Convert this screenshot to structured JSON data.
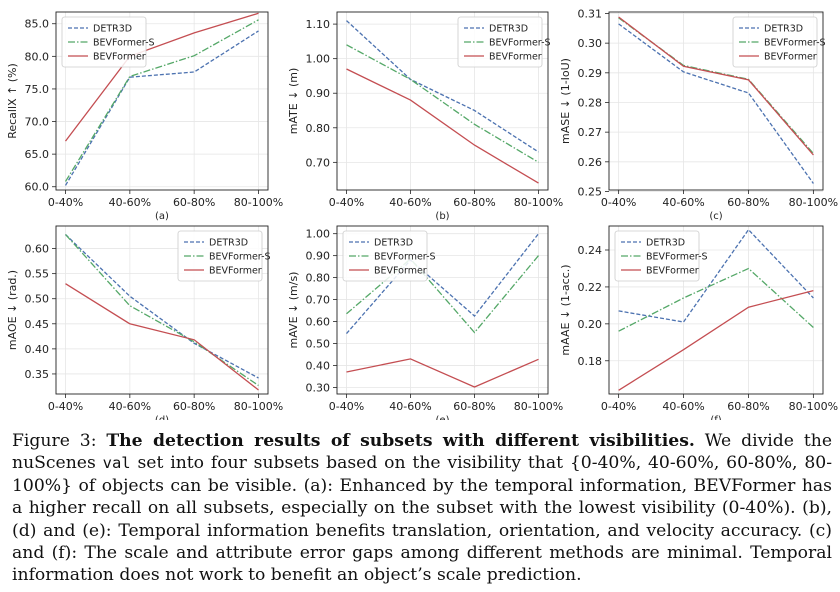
{
  "colors": {
    "DETR3D": "#4c72b0",
    "BEVFormer-S": "#55a868",
    "BEVFormer": "#c44e52"
  },
  "chart_data": [
    {
      "type": "line",
      "panel": "(a)",
      "ylabel": "RecallX ↑ (%)",
      "categories": [
        "0-40%",
        "40-60%",
        "60-80%",
        "80-100%"
      ],
      "ylim": [
        59.5,
        86.8
      ],
      "yticks": [
        60.0,
        65.0,
        70.0,
        75.0,
        80.0,
        85.0
      ],
      "ytick_labels": [
        "60.0",
        "65.0",
        "70.0",
        "75.0",
        "80.0",
        "85.0"
      ],
      "legend_loc": "top-left",
      "series": [
        {
          "name": "DETR3D",
          "values": [
            60.2,
            76.8,
            77.6,
            83.9
          ]
        },
        {
          "name": "BEVFormer-S",
          "values": [
            60.8,
            76.9,
            80.1,
            85.6
          ]
        },
        {
          "name": "BEVFormer",
          "values": [
            67.0,
            80.0,
            83.6,
            86.6
          ]
        }
      ]
    },
    {
      "type": "line",
      "panel": "(b)",
      "ylabel": "mATE ↓ (m)",
      "categories": [
        "0-40%",
        "40-60%",
        "60-80%",
        "80-100%"
      ],
      "ylim": [
        0.62,
        1.135
      ],
      "yticks": [
        0.7,
        0.8,
        0.9,
        1.0,
        1.1
      ],
      "ytick_labels": [
        "0.70",
        "0.80",
        "0.90",
        "1.00",
        "1.10"
      ],
      "legend_loc": "top-right",
      "series": [
        {
          "name": "DETR3D",
          "values": [
            1.11,
            0.94,
            0.85,
            0.73
          ]
        },
        {
          "name": "BEVFormer-S",
          "values": [
            1.04,
            0.94,
            0.81,
            0.7
          ]
        },
        {
          "name": "BEVFormer",
          "values": [
            0.97,
            0.88,
            0.75,
            0.64
          ]
        }
      ]
    },
    {
      "type": "line",
      "panel": "(c)",
      "ylabel": "mASE ↓ (1-IoU)",
      "categories": [
        "0-40%",
        "40-60%",
        "60-80%",
        "80-100%"
      ],
      "ylim": [
        0.2505,
        0.3105
      ],
      "yticks": [
        0.25,
        0.26,
        0.27,
        0.28,
        0.29,
        0.3,
        0.31
      ],
      "ytick_labels": [
        "0.25",
        "0.26",
        "0.27",
        "0.28",
        "0.29",
        "0.30",
        "0.31"
      ],
      "legend_loc": "top-right",
      "series": [
        {
          "name": "DETR3D",
          "values": [
            0.3065,
            0.2903,
            0.2832,
            0.2527
          ]
        },
        {
          "name": "BEVFormer-S",
          "values": [
            0.3085,
            0.2925,
            0.2878,
            0.2628
          ]
        },
        {
          "name": "BEVFormer",
          "values": [
            0.3088,
            0.2922,
            0.2876,
            0.2623
          ]
        }
      ]
    },
    {
      "type": "line",
      "panel": "(d)",
      "ylabel": "mAOE ↓ (rad.)",
      "categories": [
        "0-40%",
        "40-60%",
        "60-80%",
        "80-100%"
      ],
      "ylim": [
        0.31,
        0.645
      ],
      "yticks": [
        0.35,
        0.4,
        0.45,
        0.5,
        0.55,
        0.6
      ],
      "ytick_labels": [
        "0.35",
        "0.40",
        "0.45",
        "0.50",
        "0.55",
        "0.60"
      ],
      "legend_loc": "top-right",
      "series": [
        {
          "name": "DETR3D",
          "values": [
            0.628,
            0.505,
            0.411,
            0.342
          ]
        },
        {
          "name": "BEVFormer-S",
          "values": [
            0.628,
            0.486,
            0.414,
            0.327
          ]
        },
        {
          "name": "BEVFormer",
          "values": [
            0.53,
            0.45,
            0.418,
            0.318
          ]
        }
      ]
    },
    {
      "type": "line",
      "panel": "(e)",
      "ylabel": "mAVE ↓ (m/s)",
      "categories": [
        "0-40%",
        "40-60%",
        "60-80%",
        "80-100%"
      ],
      "ylim": [
        0.27,
        1.035
      ],
      "yticks": [
        0.3,
        0.4,
        0.5,
        0.6,
        0.7,
        0.8,
        0.9,
        1.0
      ],
      "ytick_labels": [
        "0.30",
        "0.40",
        "0.50",
        "0.60",
        "0.70",
        "0.80",
        "0.90",
        "1.00"
      ],
      "legend_loc": "top-left",
      "series": [
        {
          "name": "DETR3D",
          "values": [
            0.545,
            0.88,
            0.625,
            1.0
          ]
        },
        {
          "name": "BEVFormer-S",
          "values": [
            0.635,
            0.885,
            0.55,
            0.9
          ]
        },
        {
          "name": "BEVFormer",
          "values": [
            0.37,
            0.43,
            0.302,
            0.428
          ]
        }
      ]
    },
    {
      "type": "line",
      "panel": "(f)",
      "ylabel": "mAAE ↓ (1-acc.)",
      "categories": [
        "0-40%",
        "40-60%",
        "60-80%",
        "80-100%"
      ],
      "ylim": [
        0.162,
        0.253
      ],
      "yticks": [
        0.18,
        0.2,
        0.22,
        0.24
      ],
      "ytick_labels": [
        "0.18",
        "0.20",
        "0.22",
        "0.24"
      ],
      "legend_loc": "top-left",
      "series": [
        {
          "name": "DETR3D",
          "values": [
            0.207,
            0.201,
            0.251,
            0.214
          ]
        },
        {
          "name": "BEVFormer-S",
          "values": [
            0.196,
            0.214,
            0.23,
            0.198
          ]
        },
        {
          "name": "BEVFormer",
          "values": [
            0.164,
            0.186,
            0.209,
            0.218
          ]
        }
      ]
    }
  ],
  "caption": {
    "label": "Figure 3:",
    "title": "The detection results of subsets with different visibilities.",
    "text_1": "We divide the nuScenes",
    "code": "val",
    "text_2": "set into four subsets based on the visibility that {0-40%, 40-60%, 60-80%, 80-100%} of objects can be visible. (a): Enhanced by the temporal information, BEVFormer has a higher recall on all subsets, especially on the subset with the lowest visibility (0-40%). (b), (d) and (e): Temporal information benefits translation, orientation, and velocity accuracy. (c) and (f): The scale and attribute error gaps among different methods are minimal. Temporal information does not work to benefit an object’s scale prediction."
  }
}
